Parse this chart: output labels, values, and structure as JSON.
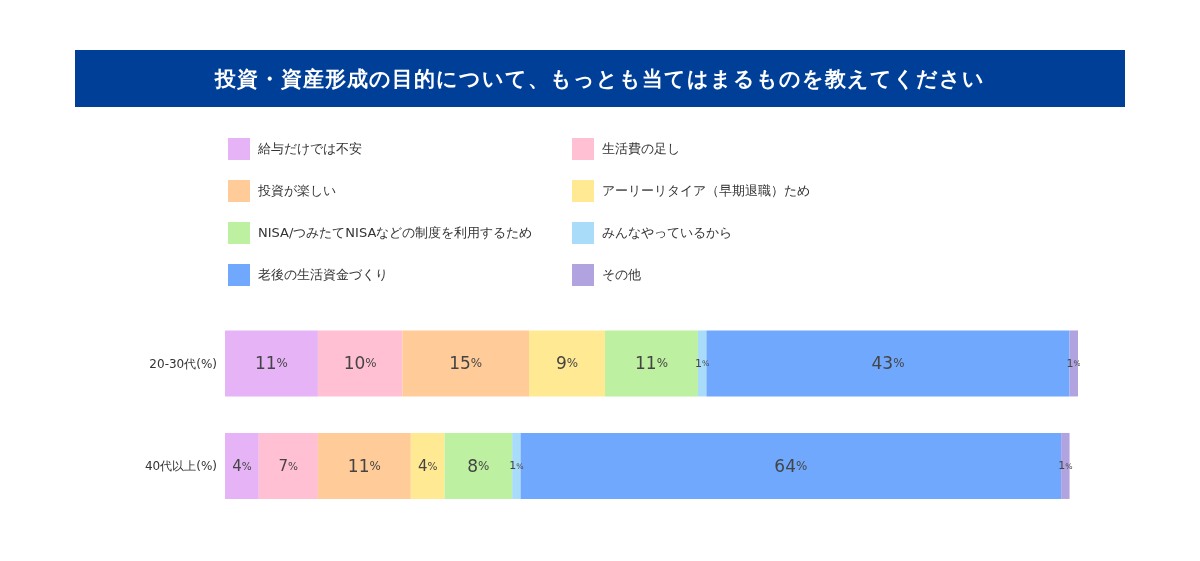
{
  "chart_data": {
    "type": "bar",
    "orientation": "horizontal",
    "stacked": true,
    "title": "投資・資産形成の目的について、もっとも当てはまるものを教えてください",
    "categories": [
      "20-30代(%)",
      "40代以上(%)"
    ],
    "legend": "top",
    "series": [
      {
        "name": "給与だけでは不安",
        "color": "#e6b3f7",
        "values": [
          11,
          4
        ],
        "value_labels": [
          "11%",
          "4%"
        ]
      },
      {
        "name": "生活費の足し",
        "color": "#ffc0d3",
        "values": [
          10,
          7
        ],
        "value_labels": [
          "10%",
          "7%"
        ]
      },
      {
        "name": "投資が楽しい",
        "color": "#ffcc99",
        "values": [
          15,
          11
        ],
        "value_labels": [
          "15%",
          "11%"
        ]
      },
      {
        "name": "アーリーリタイア（早期退職）ため",
        "color": "#ffe993",
        "values": [
          9,
          4
        ],
        "value_labels": [
          "9%",
          "4%"
        ]
      },
      {
        "name": "NISA/つみたてNISAなどの制度を利用するため",
        "color": "#bdf0a0",
        "values": [
          11,
          8
        ],
        "value_labels": [
          "11%",
          "8%"
        ]
      },
      {
        "name": "みんなやっているから",
        "color": "#a9dcf8",
        "values": [
          1,
          1
        ],
        "value_labels": [
          "1%",
          "1%"
        ]
      },
      {
        "name": "老後の生活資金づくり",
        "color": "#6fa8fc",
        "values": [
          43,
          64
        ],
        "value_labels": [
          "43%",
          "64%"
        ]
      },
      {
        "name": "その他",
        "color": "#b0a3e0",
        "values": [
          1,
          1
        ],
        "value_labels": [
          "1%",
          "1%"
        ]
      }
    ]
  }
}
